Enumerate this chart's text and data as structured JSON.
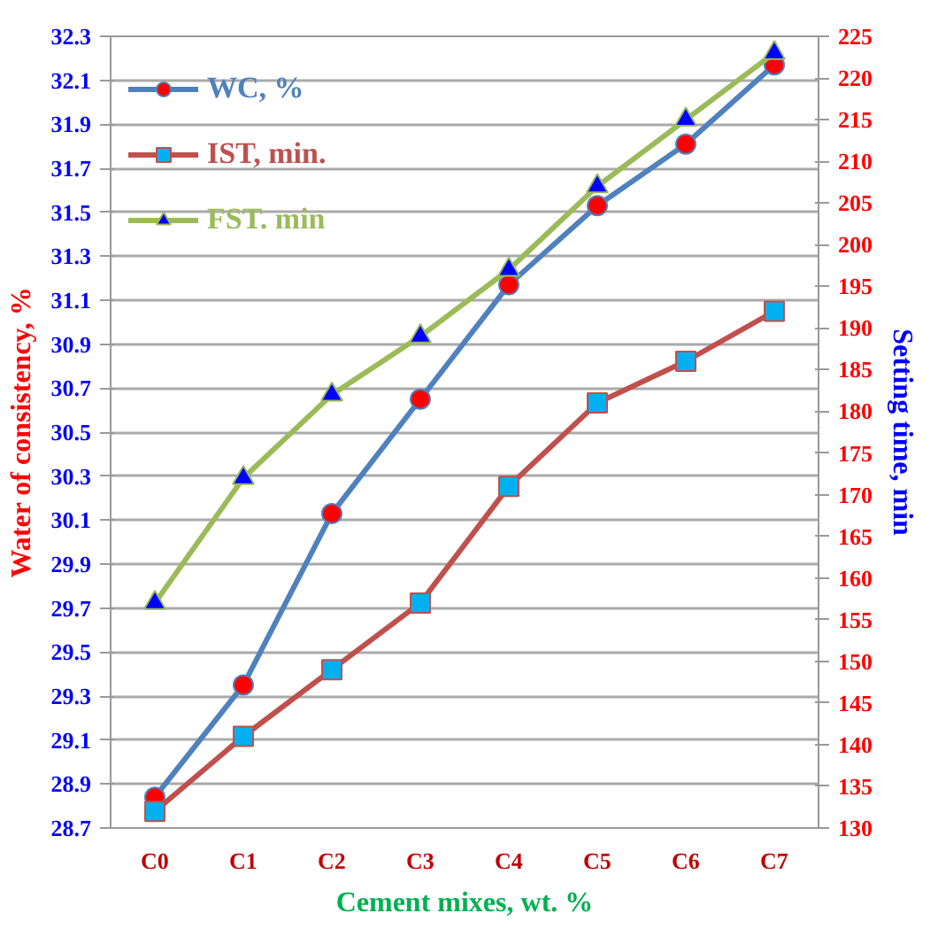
{
  "chart_data": {
    "type": "line",
    "xlabel": "Cement mixes, wt. %",
    "ylabel": "Water of consistency, %",
    "y2label": "Setting time, min",
    "categories": [
      "C0",
      "C1",
      "C2",
      "C3",
      "C4",
      "C5",
      "C6",
      "C7"
    ],
    "series": [
      {
        "name": "WC, %",
        "color": "#4f81bd",
        "marker": "circle",
        "values": [
          28.84,
          29.35,
          30.13,
          30.65,
          31.17,
          31.53,
          31.81,
          32.17
        ]
      },
      {
        "name": "IST, min.",
        "color": "#c0504d",
        "marker": "square",
        "axis": "y2",
        "values": [
          132,
          141,
          149,
          157,
          171,
          181,
          186,
          192
        ]
      },
      {
        "name": "FST. min",
        "color": "#9bbb59",
        "marker": "triangle",
        "axis": "y2",
        "values": [
          157,
          172,
          182,
          189,
          197,
          207,
          215,
          223
        ]
      }
    ],
    "ylim": [
      28.7,
      32.3
    ],
    "yticks": [
      28.7,
      28.9,
      29.1,
      29.3,
      29.5,
      29.7,
      29.9,
      30.1,
      30.3,
      30.5,
      30.7,
      30.9,
      31.1,
      31.3,
      31.5,
      31.7,
      31.9,
      32.1,
      32.3
    ],
    "y2lim": [
      130,
      225
    ],
    "y2ticks": [
      130,
      135,
      140,
      145,
      150,
      155,
      160,
      165,
      170,
      175,
      180,
      185,
      190,
      195,
      200,
      205,
      210,
      215,
      220,
      225
    ],
    "grid": "y",
    "legend": "top left"
  }
}
